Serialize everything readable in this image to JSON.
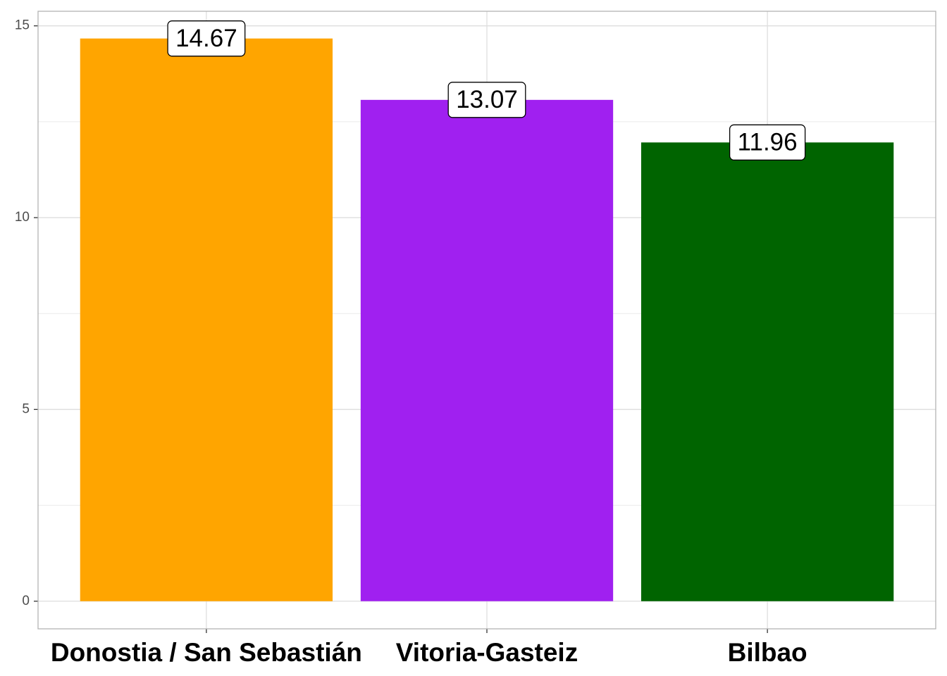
{
  "chart_data": {
    "type": "bar",
    "categories": [
      "Donostia / San Sebastián",
      "Vitoria-Gasteiz",
      "Bilbao"
    ],
    "values": [
      14.67,
      13.07,
      11.96
    ],
    "colors": [
      "#FFA500",
      "#A020F0",
      "#006400"
    ],
    "ylim": [
      -0.72,
      15.38
    ],
    "yticks": [
      0,
      5,
      10,
      15
    ],
    "grid": true
  }
}
